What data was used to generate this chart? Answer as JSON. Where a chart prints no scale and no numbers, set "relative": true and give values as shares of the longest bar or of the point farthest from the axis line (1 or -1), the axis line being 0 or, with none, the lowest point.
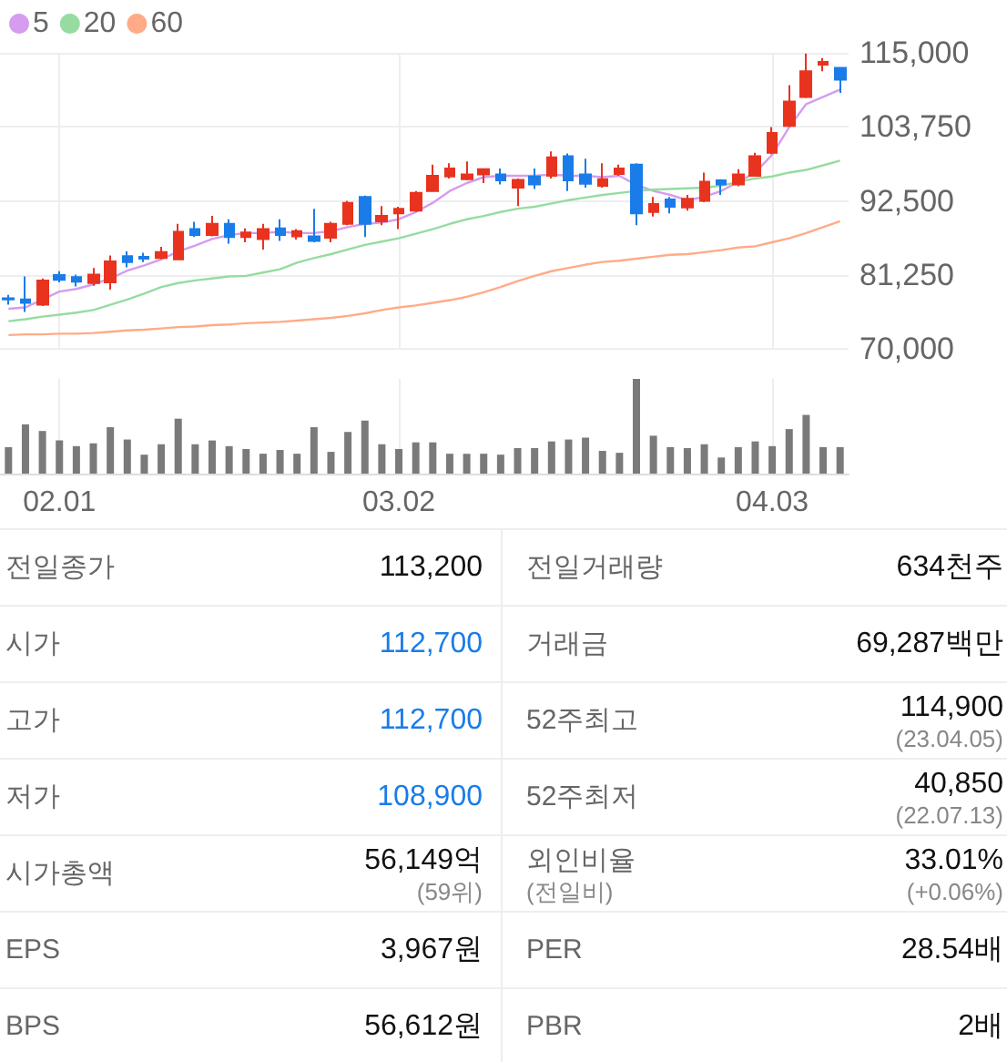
{
  "chart_data": [
    {
      "type": "candlestick",
      "categories": [
        null,
        null,
        null,
        "02.01",
        null,
        null,
        null,
        null,
        null,
        null,
        null,
        null,
        null,
        null,
        null,
        null,
        null,
        null,
        null,
        null,
        null,
        null,
        null,
        "03.02",
        null,
        null,
        null,
        null,
        null,
        null,
        null,
        null,
        null,
        null,
        null,
        null,
        null,
        null,
        null,
        null,
        null,
        null,
        null,
        null,
        null,
        "04.03",
        null,
        null,
        null,
        null
      ],
      "ohlc": [
        [
          77700,
          78200,
          76700,
          77500
        ],
        [
          77500,
          81000,
          75600,
          77000
        ],
        [
          76700,
          80700,
          76500,
          80400
        ],
        [
          81200,
          81800,
          80100,
          80500
        ],
        [
          80900,
          81300,
          79500,
          80200
        ],
        [
          80000,
          82300,
          79600,
          81300
        ],
        [
          80100,
          84200,
          79000,
          83300
        ],
        [
          84100,
          84800,
          82400,
          83200
        ],
        [
          84000,
          84600,
          83200,
          83700
        ],
        [
          83800,
          85500,
          83600,
          84700
        ],
        [
          83600,
          89000,
          83500,
          87800
        ],
        [
          88200,
          89300,
          87000,
          87300
        ],
        [
          87300,
          90200,
          87100,
          89000
        ],
        [
          89000,
          89700,
          86000,
          87000
        ],
        [
          87000,
          88300,
          86200,
          87700
        ],
        [
          86700,
          89000,
          85100,
          88200
        ],
        [
          88300,
          89700,
          86400,
          87300
        ],
        [
          87100,
          88200,
          86600,
          87900
        ],
        [
          87100,
          91300,
          86200,
          86400
        ],
        [
          86900,
          89300,
          86200,
          89000
        ],
        [
          89000,
          92500,
          88800,
          92200
        ],
        [
          93100,
          93300,
          87000,
          89000
        ],
        [
          89400,
          91700,
          88800,
          90200
        ],
        [
          90600,
          91600,
          88200,
          91300
        ],
        [
          91000,
          94000,
          90800,
          93700
        ],
        [
          94000,
          98000,
          93900,
          96300
        ],
        [
          96200,
          98200,
          95900,
          97400
        ],
        [
          95800,
          98500,
          95600,
          96500
        ],
        [
          96500,
          97400,
          95200,
          97300
        ],
        [
          96500,
          97400,
          95000,
          95600
        ],
        [
          94500,
          95900,
          91700,
          95700
        ],
        [
          96200,
          97400,
          94300,
          95000
        ],
        [
          96300,
          100000,
          95900,
          99100
        ],
        [
          99300,
          99700,
          94000,
          95600
        ],
        [
          96500,
          98900,
          94500,
          95100
        ],
        [
          94800,
          98200,
          94500,
          95800
        ],
        [
          96600,
          98000,
          96300,
          97400
        ],
        [
          98000,
          98200,
          88800,
          90600
        ],
        [
          90800,
          93100,
          90100,
          92000
        ],
        [
          92700,
          93100,
          90600,
          91600
        ],
        [
          91500,
          93400,
          91000,
          92800
        ],
        [
          92500,
          96800,
          92300,
          95400
        ],
        [
          95600,
          95800,
          93400,
          95000
        ],
        [
          95000,
          97300,
          94700,
          96500
        ],
        [
          96300,
          99800,
          96200,
          99300
        ],
        [
          99800,
          103700,
          99600,
          102800
        ],
        [
          103900,
          110100,
          103700,
          107600
        ],
        [
          108300,
          114900,
          108100,
          112200
        ],
        [
          113200,
          114200,
          112200,
          113600
        ],
        [
          112700,
          112700,
          108900,
          110900
        ]
      ],
      "colors": [
        "#1a7ce8",
        "#1a7ce8",
        "#e8331f",
        "#1a7ce8",
        "#1a7ce8",
        "#e8331f",
        "#e8331f",
        "#1a7ce8",
        "#1a7ce8",
        "#e8331f",
        "#e8331f",
        "#1a7ce8",
        "#e8331f",
        "#1a7ce8",
        "#e8331f",
        "#e8331f",
        "#1a7ce8",
        "#e8331f",
        "#1a7ce8",
        "#e8331f",
        "#e8331f",
        "#1a7ce8",
        "#e8331f",
        "#e8331f",
        "#e8331f",
        "#e8331f",
        "#e8331f",
        "#e8331f",
        "#e8331f",
        "#1a7ce8",
        "#e8331f",
        "#1a7ce8",
        "#e8331f",
        "#1a7ce8",
        "#1a7ce8",
        "#e8331f",
        "#e8331f",
        "#1a7ce8",
        "#e8331f",
        "#1a7ce8",
        "#e8331f",
        "#e8331f",
        "#1a7ce8",
        "#e8331f",
        "#e8331f",
        "#e8331f",
        "#e8331f",
        "#e8331f",
        "#e8331f",
        "#1a7ce8"
      ],
      "series": [
        {
          "name": "5",
          "type": "line",
          "color": "#d59cf0",
          "values": [
            76100,
            76300,
            77500,
            78700,
            79100,
            79800,
            80700,
            81900,
            82700,
            83600,
            84800,
            85700,
            86700,
            87300,
            87600,
            87600,
            87800,
            87600,
            87600,
            87900,
            88500,
            89000,
            89200,
            89700,
            90800,
            92200,
            94000,
            95200,
            96100,
            96300,
            96300,
            96300,
            96500,
            96300,
            96300,
            96100,
            96300,
            94900,
            94000,
            93400,
            92600,
            93100,
            94000,
            95400,
            96800,
            99500,
            103700,
            107200,
            108300,
            109400
          ]
        },
        {
          "name": "20",
          "type": "line",
          "color": "#96dca0",
          "values": [
            74200,
            74500,
            74900,
            75200,
            75500,
            75900,
            76700,
            77500,
            78400,
            79400,
            80000,
            80400,
            80700,
            81000,
            81100,
            81600,
            82100,
            83100,
            83800,
            84400,
            85100,
            85800,
            86300,
            86800,
            87500,
            88200,
            89000,
            89700,
            90200,
            90800,
            91300,
            91600,
            92100,
            92600,
            93000,
            93400,
            93700,
            94000,
            94200,
            94300,
            94400,
            94500,
            94800,
            95400,
            95900,
            96200,
            96800,
            97200,
            97900,
            98600
          ]
        },
        {
          "name": "60",
          "type": "line",
          "color": "#ffab88",
          "values": [
            72100,
            72200,
            72200,
            72300,
            72300,
            72400,
            72600,
            72800,
            72900,
            73100,
            73300,
            73400,
            73600,
            73700,
            73900,
            74000,
            74100,
            74300,
            74500,
            74700,
            75000,
            75400,
            75900,
            76300,
            76600,
            77000,
            77400,
            77900,
            78600,
            79400,
            80300,
            81100,
            81800,
            82300,
            82800,
            83200,
            83400,
            83700,
            84000,
            84300,
            84400,
            84700,
            85000,
            85400,
            85600,
            86200,
            86800,
            87600,
            88500,
            89400
          ]
        }
      ],
      "ylim": [
        70000,
        115000
      ],
      "yticks": [
        {
          "value": 70000,
          "label": "70,000"
        },
        {
          "value": 81250,
          "label": "81,250"
        },
        {
          "value": 92500,
          "label": "92,500"
        },
        {
          "value": 103750,
          "label": "103,750"
        },
        {
          "value": 115000,
          "label": "115,000"
        }
      ],
      "grid": true,
      "legend": "top left",
      "tick_labels": "y"
    },
    {
      "type": "bar",
      "relative": true,
      "color": "#7a7a7a",
      "categories": [
        null,
        null,
        null,
        "02.01",
        null,
        null,
        null,
        null,
        null,
        null,
        null,
        null,
        null,
        null,
        null,
        null,
        null,
        null,
        null,
        null,
        null,
        null,
        null,
        "03.02",
        null,
        null,
        null,
        null,
        null,
        null,
        null,
        null,
        null,
        null,
        null,
        null,
        null,
        null,
        null,
        null,
        null,
        null,
        null,
        null,
        null,
        "04.03",
        null,
        null,
        null,
        null
      ],
      "values": [
        0.28,
        0.52,
        0.45,
        0.35,
        0.29,
        0.32,
        0.49,
        0.36,
        0.2,
        0.31,
        0.58,
        0.31,
        0.35,
        0.29,
        0.26,
        0.21,
        0.25,
        0.21,
        0.49,
        0.23,
        0.44,
        0.56,
        0.31,
        0.26,
        0.33,
        0.33,
        0.21,
        0.21,
        0.21,
        0.2,
        0.27,
        0.27,
        0.34,
        0.36,
        0.38,
        0.24,
        0.22,
        1,
        0.4,
        0.28,
        0.27,
        0.31,
        0.17,
        0.28,
        0.34,
        0.29,
        0.47,
        0.62,
        0.28,
        0.28
      ],
      "grid": "x",
      "tick_labels": "x"
    },
    {
      "type": "other",
      "annotations": [
        "전일종가",
        "113,200",
        "전일거래량",
        "634천주",
        "시가",
        "112,700",
        "거래금",
        "69,287백만",
        "고가",
        "112,700",
        "52주최고",
        "114,900\n(23.04.05)",
        "저가",
        "108,900",
        "52주최저",
        "40,850\n(22.07.13)",
        "시가총액",
        "56,149억\n(59위)",
        "외인비율\n(전일비)",
        "33.01%\n(+0.06%)",
        "EPS",
        "3,967원",
        "PER",
        "28.54배",
        "BPS",
        "56,612원",
        "PBR",
        "2배"
      ],
      "colors": [
        "#666666",
        "#111111",
        "#666666",
        "#111111",
        "#666666",
        "#1a7ce8",
        "#666666",
        "#111111",
        "#666666",
        "#1a7ce8",
        "#666666",
        "#111111",
        "#666666",
        "#1a7ce8",
        "#666666",
        "#111111",
        "#666666",
        "#111111",
        "#666666",
        "#111111",
        "#666666",
        "#111111",
        "#666666",
        "#111111",
        "#666666",
        "#111111",
        "#666666",
        "#111111"
      ]
    }
  ]
}
